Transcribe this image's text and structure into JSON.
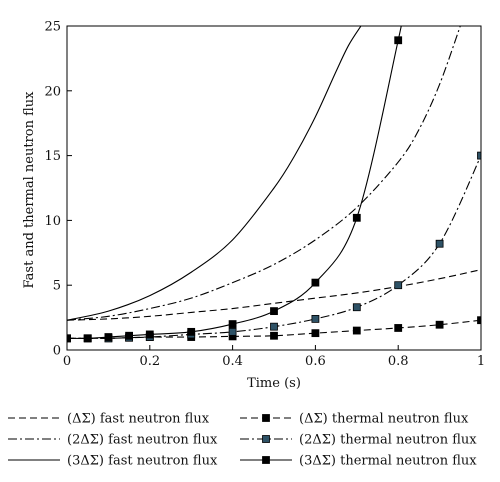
{
  "chart_data": {
    "type": "line",
    "title": "",
    "xlabel": "Time (s)",
    "ylabel": "Fast and thermal neutron flux",
    "xlim": [
      0,
      1
    ],
    "ylim": [
      0,
      25
    ],
    "x_ticks": [
      0,
      0.2,
      0.4,
      0.6,
      0.8,
      1
    ],
    "x_tick_labels": [
      "0",
      "0.2",
      "0.4",
      "0.6",
      "0.8",
      "1"
    ],
    "y_ticks": [
      0,
      5,
      10,
      15,
      20,
      25
    ],
    "y_tick_labels": [
      "0",
      "5",
      "10",
      "15",
      "20",
      "25"
    ],
    "grid": false,
    "legend_position": "bottom",
    "series": [
      {
        "name": "(ΔΣ) fast neutron flux",
        "line": "dashed",
        "marker": "none",
        "color": "#000000",
        "x": [
          0,
          0.1,
          0.2,
          0.3,
          0.4,
          0.5,
          0.6,
          0.7,
          0.8,
          0.9,
          1.0
        ],
        "y": [
          2.3,
          2.4,
          2.6,
          2.9,
          3.2,
          3.6,
          4.0,
          4.4,
          4.9,
          5.5,
          6.2
        ]
      },
      {
        "name": "(2ΔΣ) fast neutron flux",
        "line": "dashdot",
        "marker": "none",
        "color": "#000000",
        "x": [
          0,
          0.1,
          0.2,
          0.3,
          0.4,
          0.5,
          0.6,
          0.7,
          0.8,
          0.85,
          0.9,
          0.95
        ],
        "y": [
          2.3,
          2.6,
          3.2,
          4.0,
          5.2,
          6.6,
          8.5,
          11.0,
          14.5,
          17.0,
          20.5,
          25.0
        ]
      },
      {
        "name": "(3ΔΣ) fast neutron flux",
        "line": "solid",
        "marker": "none",
        "color": "#000000",
        "x": [
          0,
          0.1,
          0.2,
          0.3,
          0.4,
          0.5,
          0.55,
          0.6,
          0.65,
          0.68,
          0.71
        ],
        "y": [
          2.3,
          3.0,
          4.2,
          6.0,
          8.5,
          12.5,
          15.0,
          18.0,
          21.5,
          23.5,
          25.0
        ]
      },
      {
        "name": "(ΔΣ) thermal neutron flux",
        "line": "dashed",
        "marker": "square",
        "marker_fill": "#000000",
        "color": "#000000",
        "x": [
          0,
          0.05,
          0.1,
          0.15,
          0.2,
          0.3,
          0.4,
          0.5,
          0.6,
          0.7,
          0.8,
          0.9,
          1.0
        ],
        "y": [
          0.9,
          0.9,
          0.9,
          0.95,
          1.0,
          1.0,
          1.05,
          1.1,
          1.3,
          1.5,
          1.7,
          1.95,
          2.3
        ]
      },
      {
        "name": "(2ΔΣ) thermal neutron flux",
        "line": "dashdot",
        "marker": "square",
        "marker_fill": "#2e5266",
        "color": "#000000",
        "x": [
          0,
          0.05,
          0.1,
          0.15,
          0.2,
          0.3,
          0.4,
          0.5,
          0.6,
          0.7,
          0.8,
          0.9,
          1.0
        ],
        "y": [
          0.9,
          0.9,
          0.9,
          0.95,
          1.0,
          1.2,
          1.4,
          1.8,
          2.4,
          3.3,
          5.0,
          8.2,
          15.0
        ]
      },
      {
        "name": "(3ΔΣ) thermal neutron flux",
        "line": "solid",
        "marker": "square",
        "marker_fill": "#000000",
        "color": "#000000",
        "x": [
          0,
          0.05,
          0.1,
          0.15,
          0.2,
          0.3,
          0.4,
          0.5,
          0.6,
          0.7,
          0.8,
          0.85
        ],
        "y": [
          0.9,
          0.9,
          1.0,
          1.1,
          1.2,
          1.4,
          2.0,
          3.0,
          5.2,
          10.2,
          23.9,
          32.0
        ],
        "marker_points": [
          0,
          1,
          2,
          3,
          4,
          5,
          6,
          7,
          8,
          9,
          10
        ]
      }
    ]
  }
}
